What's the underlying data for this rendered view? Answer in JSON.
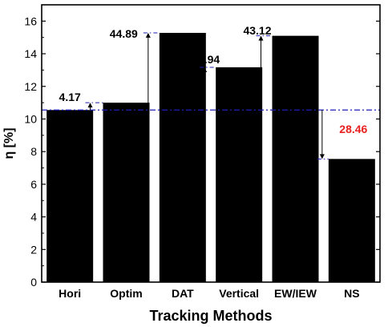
{
  "chart_data": {
    "type": "bar",
    "title": "",
    "xlabel": "Tracking Methods",
    "ylabel": "η [%]",
    "categories": [
      "Hori",
      "Optim",
      "DAT",
      "Vertical",
      "EW/IEW",
      "NS"
    ],
    "values": [
      10.55,
      11.0,
      15.28,
      13.17,
      15.1,
      7.55
    ],
    "ylim": [
      0,
      17
    ],
    "yticks": [
      0,
      2,
      4,
      6,
      8,
      10,
      12,
      14,
      16
    ],
    "baseline": 10.55,
    "grid": false,
    "legend": "none",
    "bar_color": "#000000",
    "baseline_color": "#1f1fb8",
    "annotations": [
      {
        "category": "Hori",
        "label": "4.17",
        "direction": "none",
        "color": "#000000"
      },
      {
        "category": "Optim",
        "label": "",
        "direction": "up",
        "color": "#000000"
      },
      {
        "category": "DAT",
        "label": "44.89",
        "direction": "up",
        "color": "#000000"
      },
      {
        "category": "Vertical",
        "label": "24.94",
        "direction": "up",
        "color": "#000000"
      },
      {
        "category": "EW/IEW",
        "label": "43.12",
        "direction": "up",
        "color": "#000000"
      },
      {
        "category": "NS",
        "label": "28.46",
        "direction": "down",
        "color": "#e8201f"
      }
    ]
  }
}
